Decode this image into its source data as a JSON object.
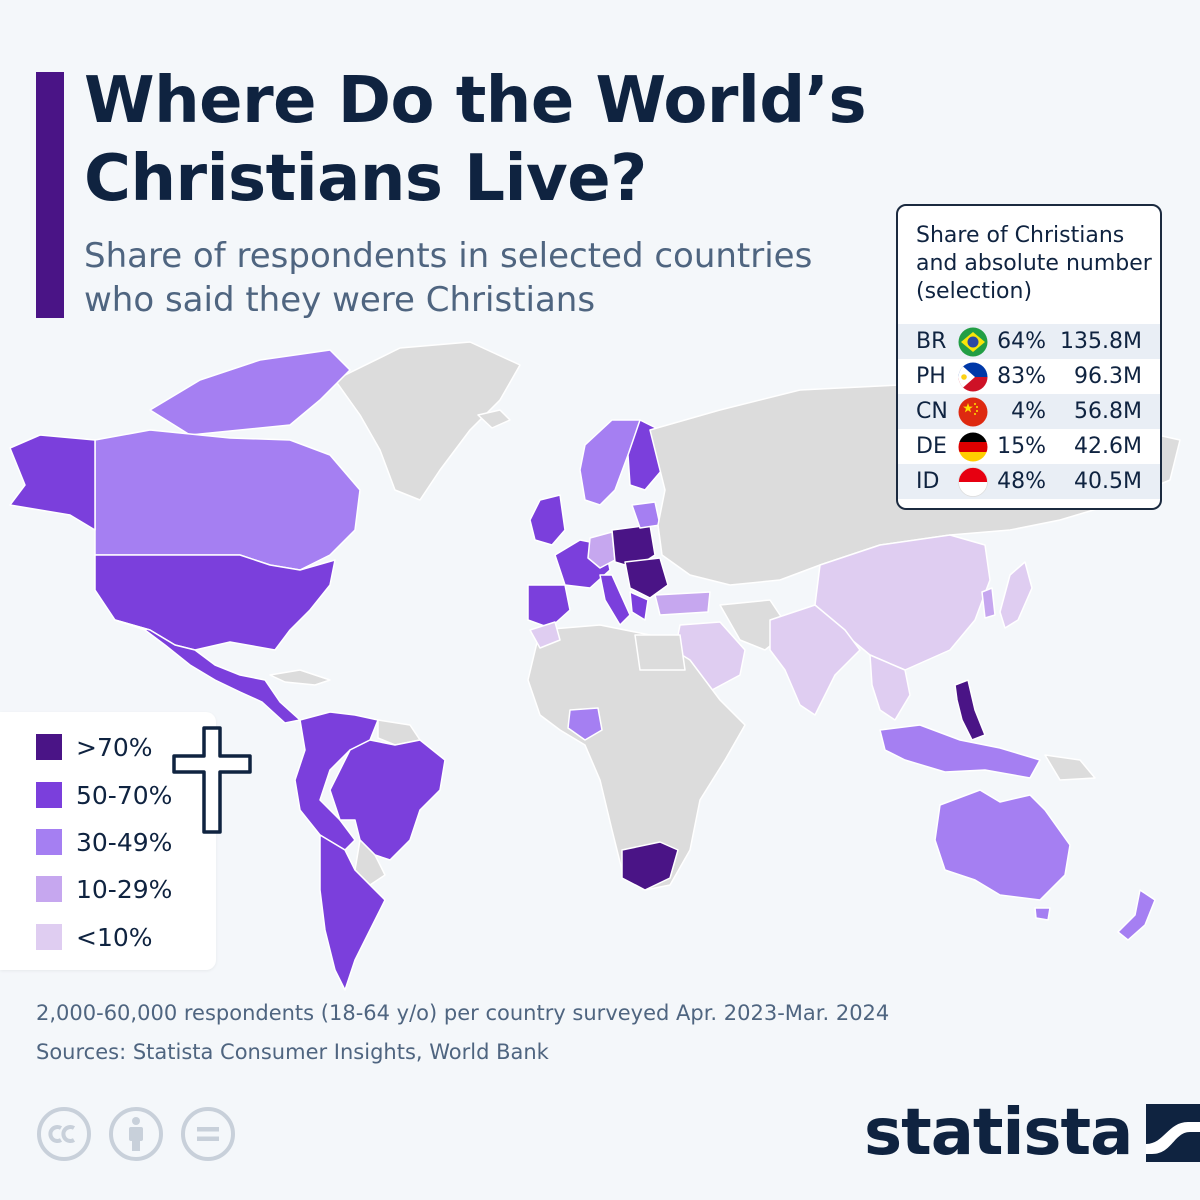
{
  "header": {
    "title": "Where Do the World’s Christians Live?",
    "subtitle": "Share of respondents in selected countries who said they were Christians"
  },
  "colors": {
    "gt70": "#4a1486",
    "50_70": "#7b3fdc",
    "30_49": "#a57ff2",
    "10_29": "#c6a7ef",
    "lt10": "#dfcdf1",
    "no_data": "#dcdcdc",
    "title": "#0f2340",
    "subtitle": "#4f6580",
    "accent": "#4a1486"
  },
  "legend": {
    "items": [
      {
        "label": ">70%",
        "color": "#4a1486"
      },
      {
        "label": "50-70%",
        "color": "#7b3fdc"
      },
      {
        "label": "30-49%",
        "color": "#a57ff2"
      },
      {
        "label": "10-29%",
        "color": "#c6a7ef"
      },
      {
        "label": "<10%",
        "color": "#dfcdf1"
      }
    ]
  },
  "table": {
    "title": "Share of Christians and absolute number (selection)",
    "rows": [
      {
        "code": "BR",
        "flag": "brazil-flag-icon",
        "share": "64%",
        "number": "135.8M"
      },
      {
        "code": "PH",
        "flag": "philippines-flag-icon",
        "share": "83%",
        "number": "96.3M"
      },
      {
        "code": "CN",
        "flag": "china-flag-icon",
        "share": "4%",
        "number": "56.8M"
      },
      {
        "code": "DE",
        "flag": "germany-flag-icon",
        "share": "15%",
        "number": "42.6M"
      },
      {
        "code": "ID",
        "flag": "indonesia-flag-icon",
        "share": "48%",
        "number": "40.5M"
      }
    ]
  },
  "footer": {
    "note": "2,000-60,000 respondents (18-64 y/o) per country surveyed Apr. 2023-Mar. 2024",
    "sources": "Sources: Statista Consumer Insights, World Bank",
    "logo": "statista"
  },
  "icons": [
    "cross-icon",
    "creative-commons-icon",
    "attribution-icon",
    "no-derivatives-icon",
    "statista-logo-icon"
  ]
}
